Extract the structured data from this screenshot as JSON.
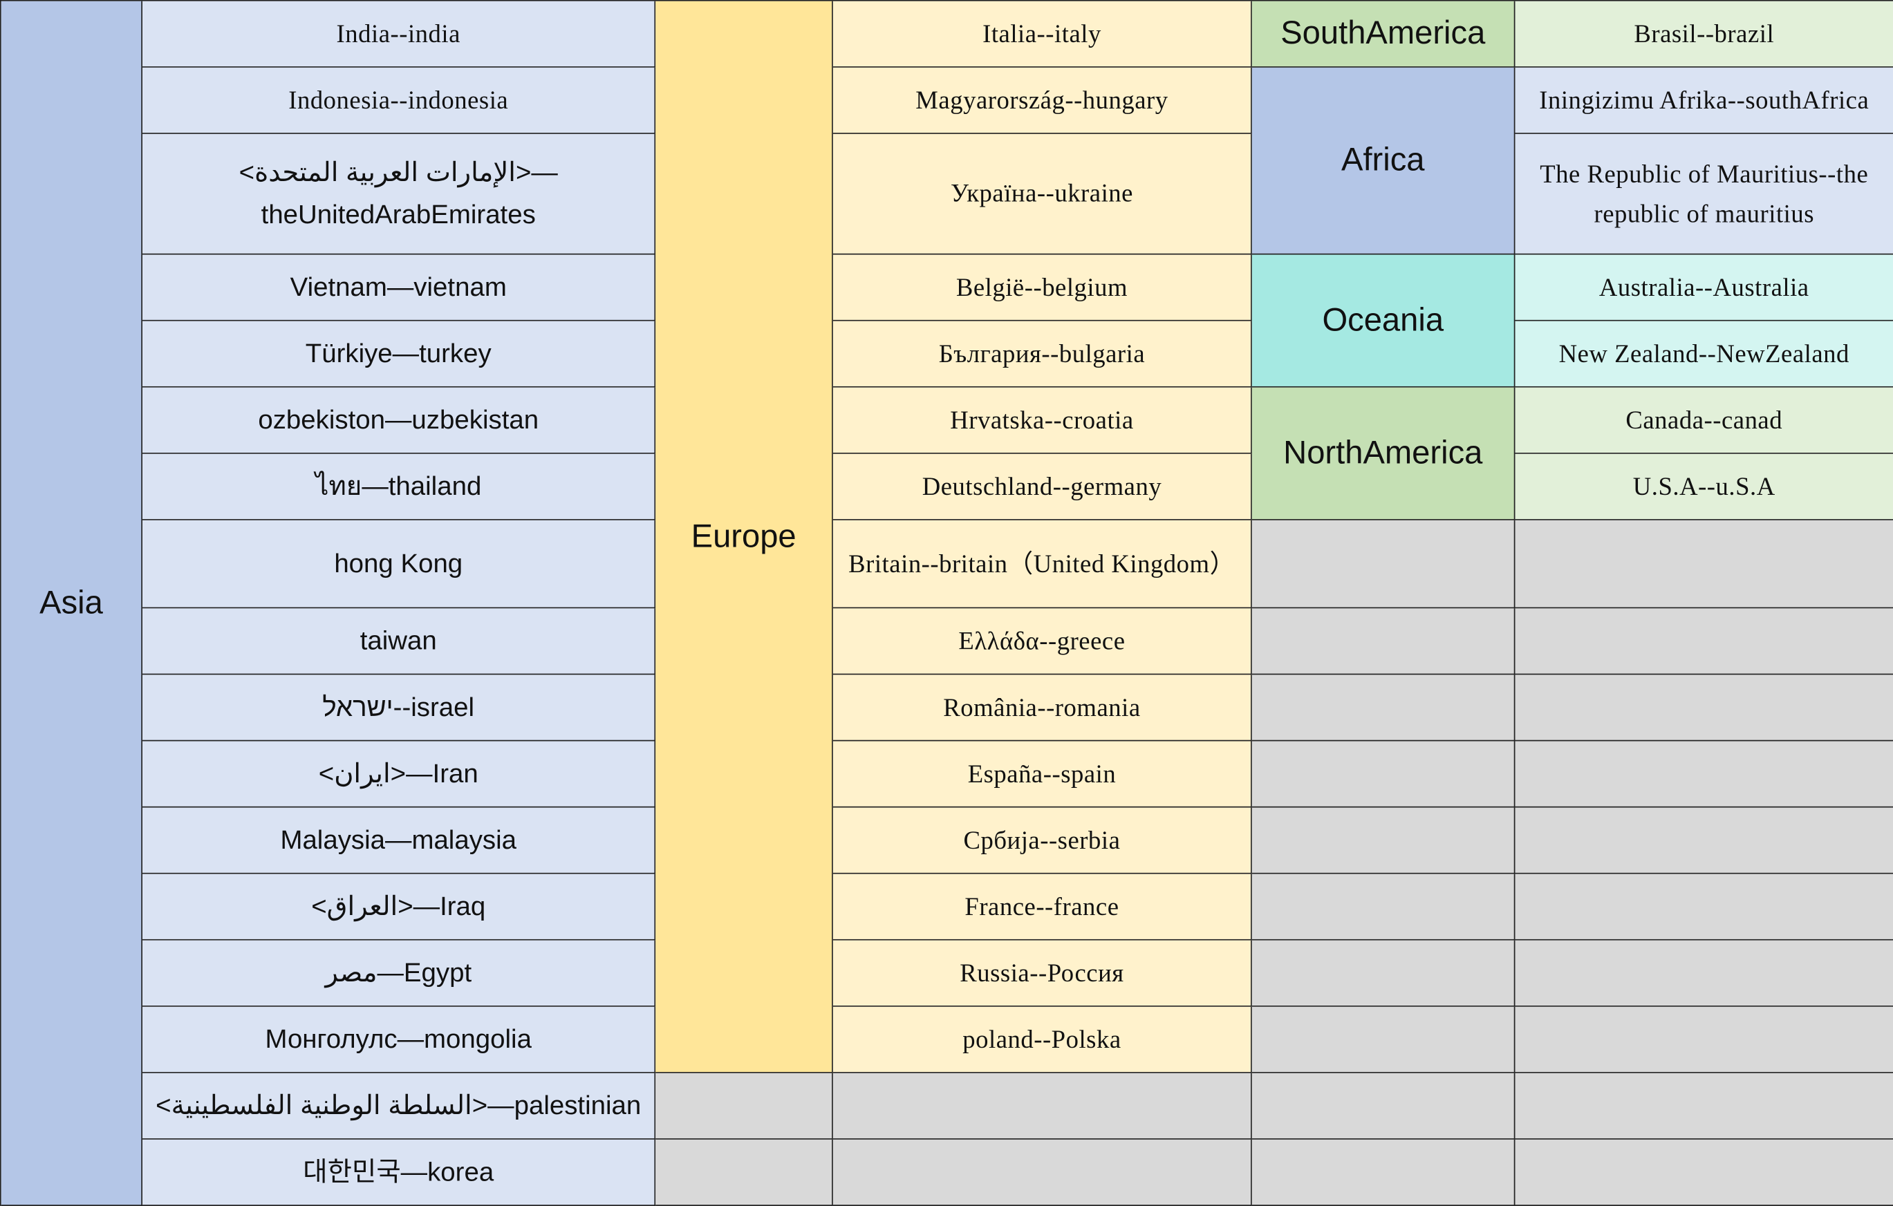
{
  "colors": {
    "asia_label": "#b4c6e7",
    "asia_cell": "#dae3f3",
    "europe_label": "#ffe699",
    "europe_cell": "#fff2cc",
    "green_label": "#c5e0b4",
    "green_cell": "#e2f0d9",
    "blue_label": "#b4c6e7",
    "blue_cell": "#dae3f3",
    "teal_label": "#a5e9e2",
    "teal_cell": "#d4f5f1",
    "empty": "#d9d9d9"
  },
  "asia": {
    "label": "Asia",
    "countries": [
      "India--india",
      "Indonesia--indonesia",
      "<الإمارات العربية المتحدة>—\ntheUnitedArabEmirates",
      "Vietnam—vietnam",
      "Türkiye—turkey",
      "ozbekiston—uzbekistan",
      "ไทย—thailand",
      "hong Kong",
      "taiwan",
      "ישראל--israel",
      "<ایران>—Iran",
      "Malaysia—malaysia",
      "<العراق>—Iraq",
      "مصر—Egypt",
      "Монголулс—mongolia",
      "<السلطة الوطنية الفلسطينية>—palestinian",
      "대한민국—korea"
    ]
  },
  "europe": {
    "label": "Europe",
    "countries": [
      "Italia--italy",
      "Magyarország--hungary",
      "Україна--ukraine",
      "België--belgium",
      "България--bulgaria",
      "Hrvatska--croatia",
      "Deutschland--germany",
      "Britain--britain（United Kingdom）",
      "Ελλάδα--greece",
      "România--romania",
      "España--spain",
      "Србија--serbia",
      "France--france",
      "Russia--Россия",
      "poland--Polska"
    ]
  },
  "others": [
    {
      "label": "SouthAmerica",
      "color": "green",
      "countries": [
        "Brasil--brazil"
      ]
    },
    {
      "label": "Africa",
      "color": "blue",
      "countries": [
        "Iningizimu Afrika--southAfrica",
        "The Republic of Mauritius--the republic of mauritius"
      ]
    },
    {
      "label": "Oceania",
      "color": "teal",
      "countries": [
        "Australia--Australia",
        "New Zealand--NewZealand"
      ]
    },
    {
      "label": "NorthAmerica",
      "color": "green",
      "countries": [
        "Canada--canad",
        "U.S.A--u.S.A"
      ]
    }
  ]
}
